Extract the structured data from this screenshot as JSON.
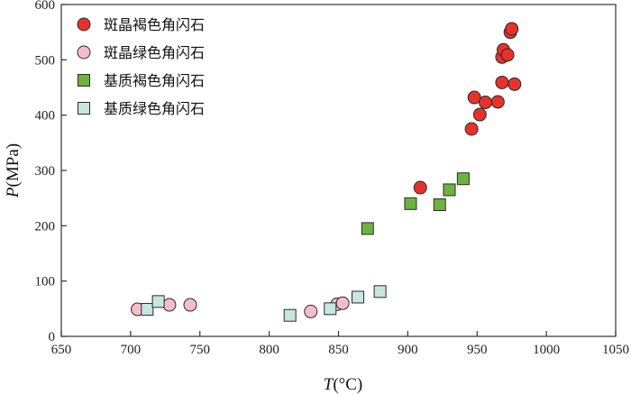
{
  "chart_data": {
    "type": "scatter",
    "title": "",
    "xlabel": {
      "italic": "T",
      "rest": "(°C)"
    },
    "ylabel": {
      "italic": "P",
      "rest": "(MPa)"
    },
    "xlim": [
      650,
      1050
    ],
    "ylim": [
      0,
      600
    ],
    "xticks": [
      650,
      700,
      750,
      800,
      850,
      900,
      950,
      1000,
      1050
    ],
    "yticks": [
      0,
      100,
      200,
      300,
      400,
      500,
      600
    ],
    "grid": false,
    "legend_position": "top-left",
    "series": [
      {
        "name": "斑晶褐色角闪石",
        "marker": "circle",
        "color": "#e8312b",
        "points": [
          [
            909,
            269
          ],
          [
            946,
            375
          ],
          [
            948,
            432
          ],
          [
            952,
            401
          ],
          [
            956,
            423
          ],
          [
            965,
            424
          ],
          [
            968,
            459
          ],
          [
            968,
            505
          ],
          [
            969,
            518
          ],
          [
            972,
            509
          ],
          [
            974,
            550
          ],
          [
            975,
            556
          ],
          [
            977,
            456
          ]
        ]
      },
      {
        "name": "斑晶绿色角闪石",
        "marker": "circle",
        "color": "#f6bccd",
        "points": [
          [
            705,
            49
          ],
          [
            728,
            57
          ],
          [
            743,
            57
          ],
          [
            830,
            45
          ],
          [
            849,
            58
          ],
          [
            853,
            60
          ]
        ]
      },
      {
        "name": "基质褐色角闪石",
        "marker": "square",
        "color": "#6fb33e",
        "points": [
          [
            871,
            195
          ],
          [
            902,
            240
          ],
          [
            923,
            238
          ],
          [
            930,
            265
          ],
          [
            940,
            285
          ]
        ]
      },
      {
        "name": "基质绿色角闪石",
        "marker": "square",
        "color": "#c7e6e1",
        "points": [
          [
            712,
            49
          ],
          [
            720,
            63
          ],
          [
            815,
            38
          ],
          [
            844,
            50
          ],
          [
            864,
            71
          ],
          [
            880,
            81
          ]
        ]
      }
    ]
  }
}
